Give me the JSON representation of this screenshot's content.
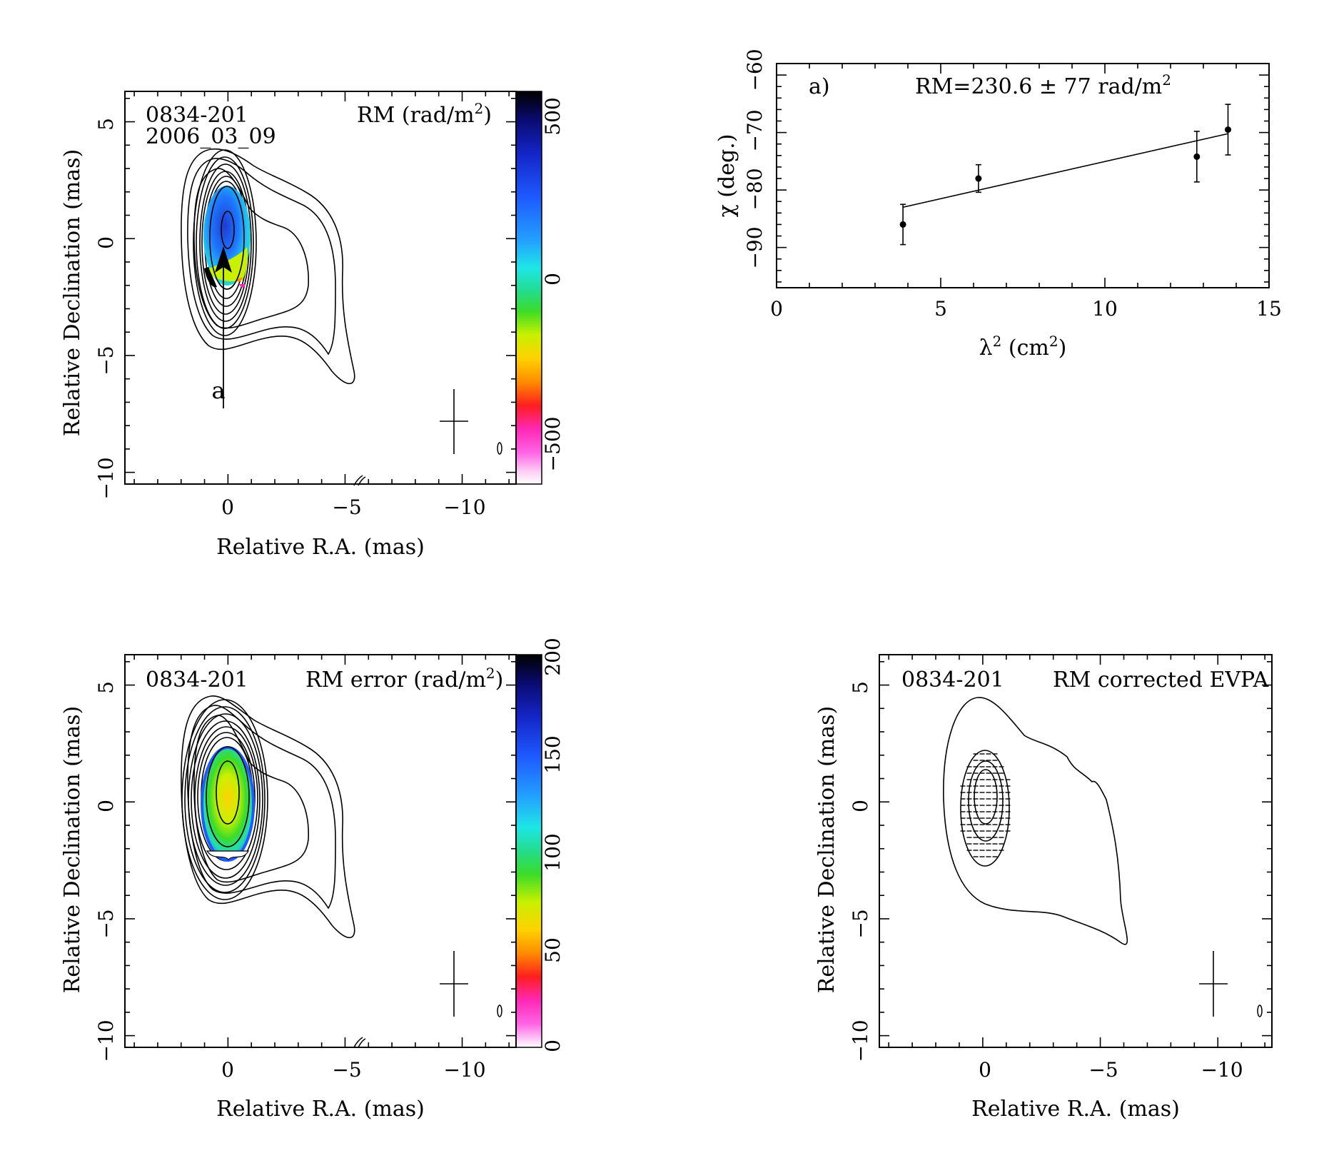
{
  "panels": {
    "rm_map": {
      "source": "0834-201",
      "date": "2006_03_09",
      "quantity_label": "RM (rad/m",
      "xlabel": "Relative R.A. (mas)",
      "ylabel": "Relative Declination (mas)",
      "x_ticks": [
        "0",
        "−5",
        "−10"
      ],
      "y_ticks": [
        "5",
        "0",
        "−5",
        "−10"
      ],
      "colorbar_ticks": [
        "500",
        "0",
        "−500"
      ],
      "slice_label": "a"
    },
    "rm_fit": {
      "panel_label": "a)",
      "annotation": "RM=230.6 ± 77 rad/m",
      "xlabel_base": "λ",
      "xlabel_tail": " (cm",
      "ylabel": "χ (deg.)",
      "x_ticks": [
        "0",
        "5",
        "10",
        "15"
      ],
      "y_ticks": [
        "−60",
        "−70",
        "−80",
        "−90"
      ]
    },
    "rm_error_map": {
      "source": "0834-201",
      "quantity_label": "RM error (rad/m",
      "xlabel": "Relative R.A. (mas)",
      "ylabel": "Relative Declination (mas)",
      "x_ticks": [
        "0",
        "−5",
        "−10"
      ],
      "y_ticks": [
        "5",
        "0",
        "−5",
        "−10"
      ],
      "colorbar_ticks": [
        "200",
        "150",
        "100",
        "50",
        "0"
      ]
    },
    "evpa_map": {
      "source": "0834-201",
      "quantity_label": "RM corrected EVPA",
      "xlabel": "Relative R.A. (mas)",
      "ylabel": "Relative Declination (mas)",
      "x_ticks": [
        "0",
        "−5",
        "−10"
      ],
      "y_ticks": [
        "5",
        "0",
        "−5",
        "−10"
      ]
    }
  },
  "chart_data": [
    {
      "type": "heatmap",
      "title": "0834-201 2006_03_09",
      "quantity": "RM (rad/m^2)",
      "xlabel": "Relative R.A. (mas)",
      "ylabel": "Relative Declination (mas)",
      "xlim": [
        4.4,
        -12.3
      ],
      "ylim": [
        -10.5,
        6.3
      ],
      "colorbar_range": [
        -600,
        600
      ],
      "slice_line": {
        "label": "a",
        "x": [
          0.2,
          0.2
        ],
        "y": [
          -0.5,
          -7.2
        ]
      }
    },
    {
      "type": "scatter",
      "panel_label": "a)",
      "annotation": "RM=230.6 ± 77 rad/m^2",
      "xlabel": "λ^2 (cm^2)",
      "ylabel": "χ (deg.)",
      "xlim": [
        0,
        15
      ],
      "ylim": [
        -97,
        -58
      ],
      "points": [
        {
          "x": 3.85,
          "y": -86.0,
          "err": 3.5
        },
        {
          "x": 6.15,
          "y": -78.0,
          "err": 2.4
        },
        {
          "x": 12.8,
          "y": -74.2,
          "err": 4.4
        },
        {
          "x": 13.75,
          "y": -69.5,
          "err": 4.4
        }
      ],
      "fit_line": {
        "x": [
          3.85,
          13.75
        ],
        "y": [
          -83.0,
          -70.2
        ]
      }
    },
    {
      "type": "heatmap",
      "title": "0834-201",
      "quantity": "RM error (rad/m^2)",
      "xlabel": "Relative R.A. (mas)",
      "ylabel": "Relative Declination (mas)",
      "xlim": [
        4.4,
        -12.3
      ],
      "ylim": [
        -10.5,
        6.3
      ],
      "colorbar_range": [
        0,
        200
      ]
    },
    {
      "type": "heatmap",
      "title": "0834-201",
      "quantity": "RM corrected EVPA",
      "xlabel": "Relative R.A. (mas)",
      "ylabel": "Relative Declination (mas)",
      "xlim": [
        4.4,
        -12.3
      ],
      "ylim": [
        -10.5,
        6.3
      ]
    }
  ],
  "colors": {
    "rm_colorbar": [
      "#000000",
      "#0a0a6e",
      "#1426c8",
      "#1e5aff",
      "#23a0ff",
      "#1ee6e6",
      "#23dc8c",
      "#3cdc28",
      "#c8f000",
      "#ffd200",
      "#ff8c00",
      "#ff1e1e",
      "#ff28b4",
      "#ff64e6",
      "#ffd2f5",
      "#ffffff"
    ],
    "err_colorbar": [
      "#000000",
      "#0a0a6e",
      "#1426c8",
      "#1e5aff",
      "#23a0ff",
      "#1ee6e6",
      "#23dc8c",
      "#3cdc28",
      "#c8f000",
      "#ffd200",
      "#ff8c00",
      "#ff1e1e",
      "#ff28b4",
      "#ff64e6",
      "#ffd2f5",
      "#ffffff"
    ]
  }
}
